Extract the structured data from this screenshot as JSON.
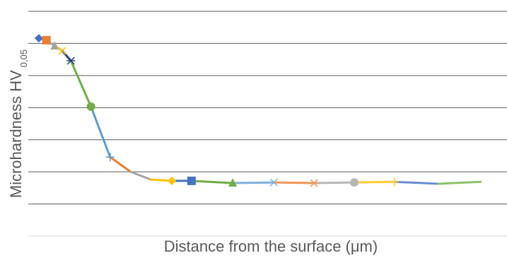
{
  "chart_data": {
    "type": "line",
    "x_label": "Distance from the surface (μm)",
    "y_label": "Microhardness HV",
    "y_label_sub": "0,05",
    "xlim": [
      0,
      100
    ],
    "ylim": [
      0,
      7
    ],
    "yticks": [
      0,
      1,
      2,
      3,
      4,
      5,
      6,
      7
    ],
    "grid": true,
    "series": [
      {
        "x": [
          2.2,
          3.8,
          5.5,
          7.1,
          8.9,
          13.1,
          17.1,
          21.4,
          25.6,
          30.0,
          34.1,
          42.7,
          51.3,
          59.7,
          68.1,
          76.5,
          85.7,
          94.5
        ],
        "values": [
          6.16,
          6.1,
          5.92,
          5.77,
          5.46,
          4.03,
          2.46,
          2.0,
          1.76,
          1.72,
          1.72,
          1.65,
          1.67,
          1.65,
          1.67,
          1.69,
          1.63,
          1.69
        ],
        "colors": [
          "#4472c4",
          "#ed7d31",
          "#a5a5a5",
          "#ffc000",
          "#264478",
          "#70ad47",
          "#5b9bd5",
          "#ed7d31",
          "#a5a5a5",
          "#ffc000",
          "#4472c4",
          "#70ad47",
          "#7cafdd",
          "#f1975a",
          "#b7b7b7",
          "#ffcd33",
          "#698ed0",
          "#8cc168"
        ],
        "markers": [
          "diamond",
          "square",
          "triangle",
          "x",
          "star",
          "circle",
          "plus",
          null,
          null,
          "diamond",
          "square",
          "triangle",
          "x",
          "star",
          "circle",
          "plus",
          null,
          null
        ]
      }
    ]
  }
}
